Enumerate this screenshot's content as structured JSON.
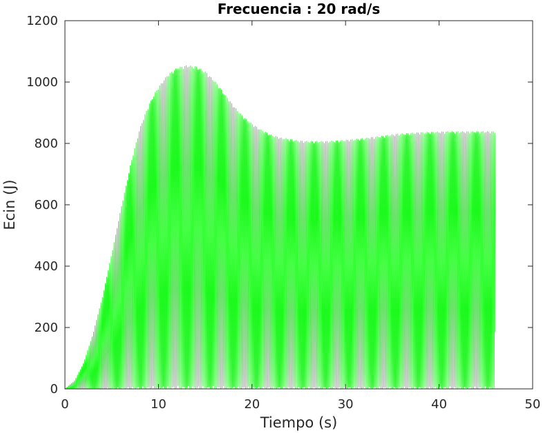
{
  "chart_data": {
    "type": "line",
    "title": "Frecuencia : 20 rad/s",
    "xlabel": "Tiempo (s)",
    "ylabel": "Ecin (J)",
    "xlim": [
      0,
      50
    ],
    "ylim": [
      0,
      1200
    ],
    "xticks": [
      "0",
      "10",
      "20",
      "30",
      "40",
      "50"
    ],
    "yticks": [
      "0",
      "200",
      "400",
      "600",
      "800",
      "1000",
      "1200"
    ],
    "grid": false,
    "series": [
      {
        "color": "#00ff00",
        "description_note": "",
        "oscillation_frequency_rad_s": 20,
        "x_end": 46,
        "envelope": {
          "x": [
            0,
            1,
            2,
            3,
            4,
            5,
            6,
            7,
            8,
            9,
            10,
            11,
            12,
            13,
            14,
            15,
            16,
            17,
            18,
            19,
            20,
            21,
            22,
            23,
            24,
            25,
            26,
            27,
            28,
            29,
            30,
            31,
            32,
            33,
            34,
            35,
            36,
            37,
            38,
            39,
            40,
            41,
            42,
            43,
            44,
            45,
            46
          ],
          "y": [
            0,
            25,
            85,
            180,
            300,
            440,
            590,
            730,
            850,
            930,
            985,
            1025,
            1048,
            1055,
            1052,
            1035,
            1005,
            965,
            925,
            890,
            865,
            845,
            830,
            820,
            815,
            810,
            808,
            808,
            808,
            810,
            812,
            815,
            818,
            822,
            826,
            830,
            833,
            835,
            837,
            838,
            839,
            840,
            840,
            840,
            840,
            840,
            840
          ]
        }
      }
    ]
  }
}
